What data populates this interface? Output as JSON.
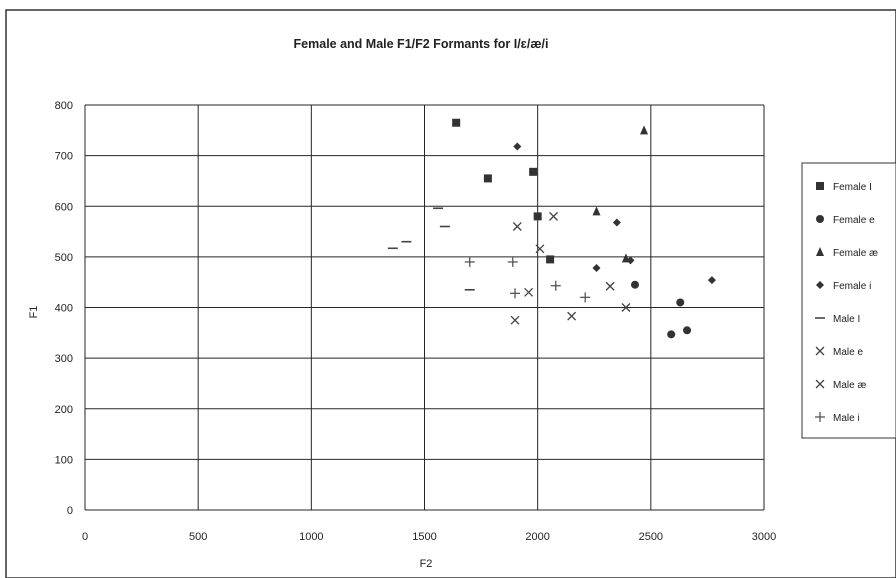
{
  "chart_data": {
    "type": "scatter",
    "title": "Female and Male F1/F2 Formants for I/ɛ/æ/i",
    "xlabel": "F2",
    "ylabel": "F1",
    "xlim": [
      0,
      3000
    ],
    "ylim": [
      0,
      800
    ],
    "x_ticks": [
      0,
      500,
      1000,
      1500,
      2000,
      2500,
      3000
    ],
    "y_ticks": [
      0,
      100,
      200,
      300,
      400,
      500,
      600,
      700,
      800
    ],
    "grid": true,
    "legend_position": "right",
    "series": [
      {
        "name": "Female I",
        "marker": "square",
        "color": "#333333",
        "points": [
          [
            1640,
            765
          ],
          [
            1780,
            655
          ],
          [
            1980,
            668
          ],
          [
            2000,
            580
          ],
          [
            2055,
            495
          ]
        ]
      },
      {
        "name": "Female e",
        "marker": "circle",
        "color": "#333333",
        "points": [
          [
            2430,
            445
          ],
          [
            2590,
            347
          ],
          [
            2630,
            410
          ],
          [
            2660,
            355
          ]
        ]
      },
      {
        "name": "Female æ",
        "marker": "triangle",
        "color": "#333333",
        "points": [
          [
            2470,
            750
          ],
          [
            2260,
            590
          ],
          [
            2390,
            497
          ]
        ]
      },
      {
        "name": "Female i",
        "marker": "diamond",
        "color": "#333333",
        "points": [
          [
            1910,
            718
          ],
          [
            2260,
            478
          ],
          [
            2350,
            568
          ],
          [
            2410,
            493
          ],
          [
            2770,
            454
          ]
        ]
      },
      {
        "name": "Male I",
        "marker": "dash",
        "color": "#444444",
        "points": [
          [
            1360,
            517
          ],
          [
            1420,
            530
          ],
          [
            1560,
            596
          ],
          [
            1590,
            560
          ],
          [
            1700,
            435
          ]
        ]
      },
      {
        "name": "Male e",
        "marker": "x",
        "color": "#444444",
        "points": [
          [
            1900,
            375
          ],
          [
            1960,
            430
          ],
          [
            2150,
            383
          ],
          [
            2320,
            442
          ],
          [
            2390,
            400
          ]
        ]
      },
      {
        "name": "Male æ",
        "marker": "x",
        "color": "#444444",
        "points": [
          [
            1910,
            560
          ],
          [
            2010,
            516
          ],
          [
            2070,
            580
          ]
        ]
      },
      {
        "name": "Male i",
        "marker": "plus",
        "color": "#555555",
        "points": [
          [
            1700,
            490
          ],
          [
            1890,
            490
          ],
          [
            1900,
            428
          ],
          [
            2080,
            443
          ],
          [
            2210,
            420
          ]
        ]
      }
    ]
  }
}
